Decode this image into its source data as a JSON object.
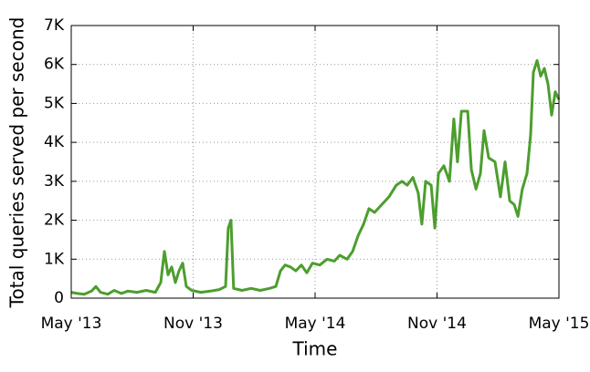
{
  "chart_data": {
    "type": "line",
    "x_label": "Time",
    "y_label": "Total queries served per second",
    "x": [
      2013.333,
      2013.359,
      2013.386,
      2013.416,
      2013.434,
      2013.453,
      2013.483,
      2013.509,
      2013.539,
      2013.565,
      2013.603,
      2013.64,
      2013.678,
      2013.7,
      2013.715,
      2013.73,
      2013.745,
      2013.76,
      2013.775,
      2013.79,
      2013.805,
      2013.827,
      2013.865,
      2013.903,
      2013.94,
      2013.966,
      2013.977,
      2013.988,
      2013.999,
      2014.033,
      2014.071,
      2014.108,
      2014.146,
      2014.172,
      2014.191,
      2014.21,
      2014.232,
      2014.254,
      2014.277,
      2014.299,
      2014.322,
      2014.352,
      2014.382,
      2014.412,
      2014.434,
      2014.464,
      2014.487,
      2014.509,
      2014.532,
      2014.554,
      2014.577,
      2014.606,
      2014.636,
      2014.666,
      2014.689,
      2014.711,
      2014.734,
      2014.756,
      2014.771,
      2014.786,
      2014.809,
      2014.824,
      2014.839,
      2014.861,
      2014.884,
      2014.902,
      2014.917,
      2014.933,
      2014.959,
      2014.974,
      2014.993,
      2015.011,
      2015.026,
      2015.045,
      2015.071,
      2015.093,
      2015.112,
      2015.131,
      2015.15,
      2015.165,
      2015.183,
      2015.202,
      2015.217,
      2015.228,
      2015.243,
      2015.258,
      2015.273,
      2015.288,
      2015.303,
      2015.318,
      2015.333
    ],
    "series": [
      {
        "name": "Total queries served per second",
        "color": "#4c9e2e",
        "values": [
          150,
          120,
          100,
          180,
          300,
          150,
          100,
          200,
          120,
          180,
          150,
          200,
          150,
          400,
          1200,
          600,
          800,
          400,
          700,
          900,
          300,
          200,
          150,
          180,
          220,
          300,
          1800,
          2000,
          250,
          200,
          250,
          200,
          250,
          300,
          700,
          850,
          800,
          700,
          850,
          650,
          900,
          850,
          1000,
          950,
          1100,
          1000,
          1200,
          1600,
          1900,
          2300,
          2200,
          2400,
          2600,
          2900,
          3000,
          2900,
          3100,
          2700,
          1900,
          3000,
          2900,
          1800,
          3200,
          3400,
          3000,
          4600,
          3500,
          4800,
          4800,
          3300,
          2800,
          3200,
          4300,
          3600,
          3500,
          2600,
          3500,
          2500,
          2400,
          2100,
          2800,
          3200,
          4200,
          5800,
          6100,
          5700,
          5900,
          5500,
          4700,
          5300,
          5100
        ]
      }
    ],
    "xlim": [
      2013.333,
      2015.333
    ],
    "xticks": [
      {
        "value": 2013.333,
        "label": "May '13"
      },
      {
        "value": 2013.833,
        "label": "Nov '13"
      },
      {
        "value": 2014.333,
        "label": "May '14"
      },
      {
        "value": 2014.833,
        "label": "Nov '14"
      },
      {
        "value": 2015.333,
        "label": "May '15"
      }
    ],
    "ylim": [
      0,
      7000
    ],
    "yticks": [
      0,
      {
        "value": 1000,
        "label": "1K"
      },
      {
        "value": 2000,
        "label": "2K"
      },
      {
        "value": 3000,
        "label": "3K"
      },
      {
        "value": 4000,
        "label": "4K"
      },
      {
        "value": 5000,
        "label": "5K"
      },
      {
        "value": 6000,
        "label": "6K"
      },
      {
        "value": 7000,
        "label": "7K"
      }
    ],
    "grid": true
  }
}
